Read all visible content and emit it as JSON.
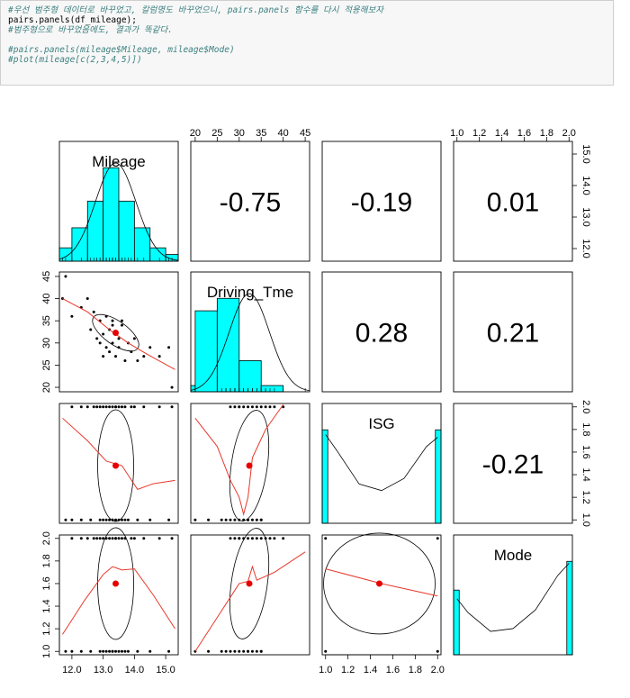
{
  "code_cell": {
    "lines": [
      {
        "text": "#우선 범주형 데이터로 바꾸었고, 칼럼명도 바꾸었으니, pairs.panels 함수를 다시 적용해보자",
        "comment": true
      },
      {
        "text": "pairs.panels(df_mileage);",
        "comment": false
      },
      {
        "text": "#범주형으로 바꾸었음에도, 결과가 똑같다.",
        "comment": true
      },
      {
        "text": "",
        "comment": false
      },
      {
        "text": "#pairs.panels(mileage$Mileage, mileage$Mode)",
        "comment": true
      },
      {
        "text": "#plot(mileage[c(2,3,4,5)])",
        "comment": true
      }
    ]
  },
  "chart_data": {
    "type": "scatter",
    "title": "pairs.panels(df_mileage)",
    "variables": [
      "Mileage",
      "Driving_Tme",
      "ISG",
      "Mode"
    ],
    "ranges": {
      "Mileage": [
        11.6,
        15.4
      ],
      "Driving_Tme": [
        19,
        46
      ],
      "ISG": [
        0.97,
        2.03
      ],
      "Mode": [
        0.97,
        2.03
      ]
    },
    "ticks": {
      "Mileage": [
        "12.0",
        "13.0",
        "14.0",
        "15.0"
      ],
      "Driving_Tme": [
        "20",
        "25",
        "30",
        "35",
        "40",
        "45"
      ],
      "ISG": [
        "1.0",
        "1.2",
        "1.4",
        "1.6",
        "1.8",
        "2.0"
      ],
      "Mode": [
        "1.0",
        "1.2",
        "1.4",
        "1.6",
        "1.8",
        "2.0"
      ]
    },
    "correlations": [
      {
        "pair": [
          "Mileage",
          "Driving_Tme"
        ],
        "label": "-0.75"
      },
      {
        "pair": [
          "Mileage",
          "ISG"
        ],
        "label": "-0.19"
      },
      {
        "pair": [
          "Mileage",
          "Mode"
        ],
        "label": "0.01"
      },
      {
        "pair": [
          "Driving_Tme",
          "ISG"
        ],
        "label": "0.28"
      },
      {
        "pair": [
          "Driving_Tme",
          "Mode"
        ],
        "label": "0.21"
      },
      {
        "pair": [
          "ISG",
          "Mode"
        ],
        "label": "-0.21"
      }
    ],
    "means": {
      "Mileage": 13.4,
      "Driving_Tme": 32.3,
      "ISG": 1.48,
      "Mode": 1.6
    },
    "histograms": {
      "Mileage": {
        "breaks": [
          11.6,
          12.0,
          12.5,
          13.0,
          13.5,
          14.0,
          14.5,
          15.0,
          15.4
        ],
        "counts": [
          2,
          5,
          9,
          14,
          9,
          5,
          2,
          1
        ]
      },
      "Driving_Tme": {
        "breaks": [
          19,
          20,
          25,
          30,
          35,
          40,
          45
        ],
        "counts": [
          1,
          13,
          15,
          5,
          1,
          0
        ]
      },
      "ISG": {
        "breaks": [
          0.97,
          1.02,
          1.98,
          2.03
        ],
        "counts": [
          15,
          0,
          15
        ]
      },
      "Mode": {
        "breaks": [
          0.97,
          1.02,
          1.98,
          2.03
        ],
        "counts": [
          9,
          0,
          13
        ]
      }
    },
    "densities": {
      "ISG": [
        [
          1.0,
          0.95
        ],
        [
          1.1,
          0.78
        ],
        [
          1.3,
          0.42
        ],
        [
          1.5,
          0.35
        ],
        [
          1.7,
          0.48
        ],
        [
          1.9,
          0.82
        ],
        [
          2.0,
          0.92
        ]
      ],
      "Mode": [
        [
          1.0,
          0.6
        ],
        [
          1.1,
          0.45
        ],
        [
          1.3,
          0.25
        ],
        [
          1.5,
          0.28
        ],
        [
          1.7,
          0.48
        ],
        [
          1.9,
          0.85
        ],
        [
          2.0,
          0.98
        ]
      ]
    },
    "mileage_vs_driving": {
      "x": [
        11.7,
        11.8,
        12.0,
        12.3,
        12.5,
        12.6,
        12.7,
        12.8,
        12.9,
        12.9,
        13.0,
        13.0,
        13.1,
        13.1,
        13.2,
        13.2,
        13.3,
        13.3,
        13.3,
        13.4,
        13.4,
        13.5,
        13.5,
        13.6,
        13.6,
        13.7,
        13.8,
        13.9,
        14.0,
        14.1,
        14.3,
        14.5,
        14.8,
        15.1,
        15.2
      ],
      "y": [
        40,
        45,
        36,
        38,
        40,
        33,
        37,
        31,
        35,
        30,
        32,
        27,
        36,
        29,
        33,
        28,
        34,
        30,
        35,
        32,
        27,
        31,
        29,
        35,
        34,
        26,
        30,
        28,
        31,
        26,
        27,
        29,
        27,
        29,
        20
      ]
    },
    "mileage_vs_categorical": {
      "x_low": [
        11.8,
        12.0,
        12.3,
        12.6,
        12.9,
        13.0,
        13.1,
        13.2,
        13.3,
        13.3,
        13.4,
        13.5,
        13.6,
        13.7,
        13.8,
        14.1,
        14.5,
        15.1
      ],
      "x_high": [
        12.0,
        12.3,
        12.5,
        12.7,
        12.8,
        12.9,
        13.0,
        13.1,
        13.2,
        13.3,
        13.4,
        13.4,
        13.5,
        13.6,
        13.7,
        13.9,
        14.0,
        14.3,
        14.8,
        15.2
      ]
    },
    "driving_vs_categorical": {
      "x_low": [
        20,
        23,
        26,
        27,
        28,
        29,
        30,
        31,
        32,
        32,
        33,
        34,
        35,
        35
      ],
      "x_high": [
        28,
        29,
        30,
        30,
        31,
        32,
        33,
        34,
        35,
        36,
        37,
        38,
        40
      ]
    }
  }
}
